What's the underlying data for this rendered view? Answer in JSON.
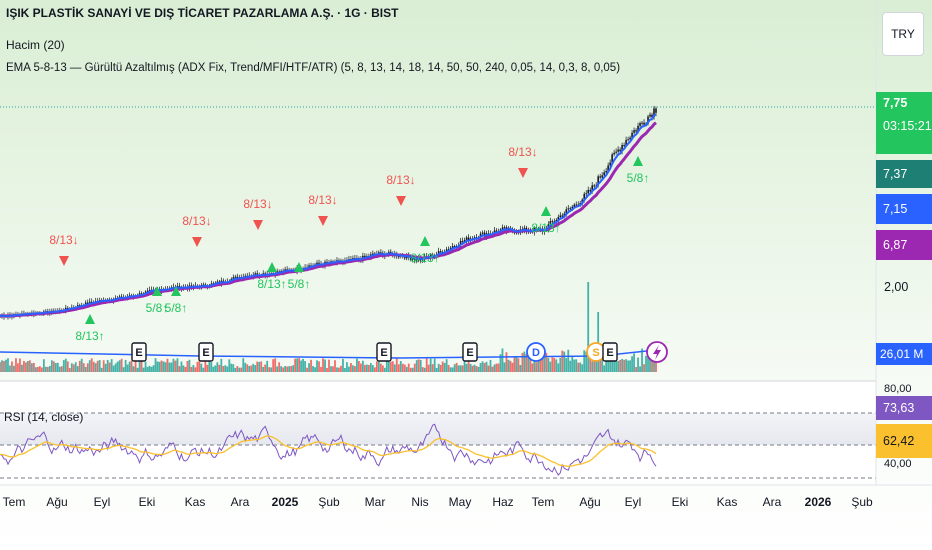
{
  "header": {
    "title": "IŞIK PLASTİK SANAYİ VE DIŞ TİCARET PAZARLAMA A.Ş. · 1G · BIST",
    "volume_label": "Hacim (20)",
    "ema_label": "EMA 5-8-13 — Gürültü Azaltılmış (ADX Fix, Trend/MFI/HTF/ATR) (5, 8, 13, 14, 18, 14, 50, 50, 240, 0,05, 14, 0,3, 8, 0,05)",
    "currency": "TRY"
  },
  "price_tags": {
    "last": "7,75",
    "countdown": "03:15:21",
    "ema1": "7,37",
    "ema2": "7,15",
    "ema3": "6,87",
    "axis_low": "2,00",
    "volume": "26,01 M"
  },
  "rsi": {
    "label": "RSI (14, close)",
    "value": "73,63",
    "ma_value": "62,42",
    "upper_tick": "80,00",
    "lower_tick": "40,00"
  },
  "colors": {
    "up": "#26a69a",
    "down": "#ef5350",
    "ema_fast": "#2962ff",
    "ema_slow": "#9c27b0",
    "rsi_line": "#7e57c2",
    "rsi_ma": "#fbc02d",
    "signal_buy": "#22c55e",
    "signal_sell": "#ef5350"
  },
  "chart_data": {
    "type": "line",
    "x_ticks": [
      "Tem",
      "Ağu",
      "Eyl",
      "Eki",
      "Kas",
      "Ara",
      "2025",
      "Şub",
      "Mar",
      "Nis",
      "May",
      "Haz",
      "Tem",
      "Ağu",
      "Eyl",
      "Eki",
      "Kas",
      "Ara",
      "2026",
      "Şub"
    ],
    "price_series": [
      [
        "Tem",
        "1,62"
      ],
      [
        "Ağu",
        "1,78"
      ],
      [
        "Eyl",
        "2,05"
      ],
      [
        "Eki",
        "2,32"
      ],
      [
        "Kas",
        "2,48"
      ],
      [
        "Ara",
        "2,72"
      ],
      [
        "2025",
        "2,96"
      ],
      [
        "Şub",
        "3,12"
      ],
      [
        "Mar",
        "3,42"
      ],
      [
        "Nis",
        "3,28"
      ],
      [
        "May",
        "3,72"
      ],
      [
        "Haz",
        "4,18"
      ],
      [
        "Tem",
        "4,05"
      ],
      [
        "Ağu",
        "5,30"
      ],
      [
        "Eyl",
        "7,75"
      ]
    ],
    "signals": [
      {
        "type": "sell",
        "label": "8/13↓",
        "date": "Tem"
      },
      {
        "type": "buy",
        "label": "8/13↑",
        "date": "Ağu"
      },
      {
        "type": "buy",
        "label": "5/8↑",
        "date": "Eyl"
      },
      {
        "type": "buy",
        "label": "5/8↑",
        "date": "Eyl"
      },
      {
        "type": "sell",
        "label": "8/13↓",
        "date": "Eki"
      },
      {
        "type": "sell",
        "label": "8/13↓",
        "date": "Kas"
      },
      {
        "type": "buy",
        "label": "8/13↑",
        "date": "Ara"
      },
      {
        "type": "buy",
        "label": "5/8↑",
        "date": "Ara"
      },
      {
        "type": "sell",
        "label": "8/13↓",
        "date": "2025"
      },
      {
        "type": "sell",
        "label": "8/13↓",
        "date": "Mar"
      },
      {
        "type": "buy",
        "label": "8/13↑",
        "date": "Nis"
      },
      {
        "type": "sell",
        "label": "8/13↓",
        "date": "Haz"
      },
      {
        "type": "buy",
        "label": "8/13↑",
        "date": "Tem"
      },
      {
        "type": "buy",
        "label": "5/8↑",
        "date": "Eyl"
      }
    ],
    "events": [
      "E",
      "E",
      "E",
      "E",
      "D",
      "S",
      "E"
    ],
    "rsi_range": [
      40,
      80
    ],
    "grid": false
  }
}
